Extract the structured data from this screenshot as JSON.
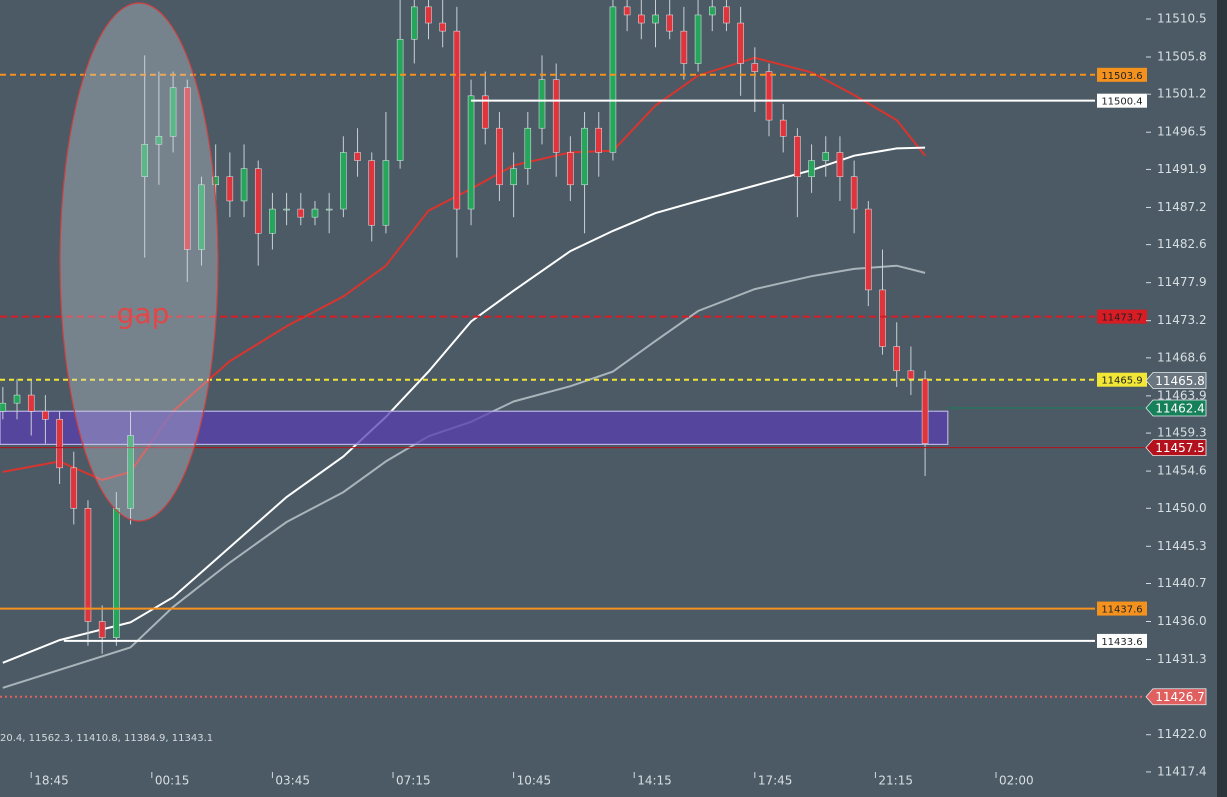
{
  "chart_data": {
    "type": "candlestick",
    "up_color": "#26a65b",
    "down_color": "#e0343d",
    "wick_color": "#c8d0d6",
    "ylim": [
      11414.3,
      11512.85
    ],
    "xlim": [
      -0.2,
      80.5
    ],
    "yticks": [
      11510.5,
      11505.8,
      11501.2,
      11496.5,
      11491.9,
      11487.2,
      11482.6,
      11477.9,
      11473.2,
      11468.6,
      11463.9,
      11459.3,
      11454.6,
      {
        "value": 11450.0,
        "label": "11450.0"
      },
      11445.3,
      11440.7,
      {
        "value": 11436.0,
        "label": "11436.0"
      },
      11431.3,
      {
        "value": 11422.0,
        "label": "11422.0"
      },
      11417.4
    ],
    "xticks": [
      {
        "value": 2,
        "label": "18:45"
      },
      {
        "value": 10.5,
        "label": "00:15"
      },
      {
        "value": 19,
        "label": "03:45"
      },
      {
        "value": 27.5,
        "label": "07:15"
      },
      {
        "value": 36,
        "label": "10:45"
      },
      {
        "value": 44.5,
        "label": "14:15"
      },
      {
        "value": 53,
        "label": "17:45"
      },
      {
        "value": 61.5,
        "label": "21:15"
      },
      {
        "value": 70,
        "label": "02:00"
      }
    ],
    "candles": [
      [
        11462,
        11465,
        11461,
        11463
      ],
      [
        11463,
        11466,
        11461,
        11464
      ],
      [
        11464,
        11466,
        11459,
        11462
      ],
      [
        11462,
        11464,
        11458,
        11461
      ],
      [
        11461,
        11462,
        11453,
        11455
      ],
      [
        11455,
        11457,
        11448,
        11450
      ],
      [
        11450,
        11451,
        11433,
        11436
      ],
      [
        11436,
        11438,
        11432,
        11434
      ],
      [
        11434,
        11452,
        11433,
        11450
      ],
      [
        11450,
        11462,
        11448,
        11459
      ],
      [
        11491,
        11506,
        11481,
        11495
      ],
      [
        11495,
        11504,
        11490,
        11496
      ],
      [
        11496,
        11504,
        11494,
        11502
      ],
      [
        11502,
        11503,
        11478,
        11482
      ],
      [
        11482,
        11491,
        11480,
        11490
      ],
      [
        11490,
        11495,
        11488,
        11491
      ],
      [
        11491,
        11494,
        11486,
        11488
      ],
      [
        11488,
        11495,
        11486,
        11492
      ],
      [
        11492,
        11493,
        11480,
        11484
      ],
      [
        11484,
        11489,
        11482,
        11487
      ],
      [
        11487,
        11489,
        11485,
        11487
      ],
      [
        11487,
        11489,
        11485,
        11486
      ],
      [
        11486,
        11488,
        11485,
        11487
      ],
      [
        11487,
        11489,
        11484,
        11487
      ],
      [
        11487,
        11496,
        11486,
        11494
      ],
      [
        11494,
        11497,
        11491,
        11493
      ],
      [
        11493,
        11494,
        11483,
        11485
      ],
      [
        11485,
        11499,
        11484,
        11493
      ],
      [
        11493,
        11513,
        11492,
        11508
      ],
      [
        11508,
        11513,
        11505,
        11512
      ],
      [
        11512,
        11513,
        11508,
        11510
      ],
      [
        11510,
        11513,
        11507,
        11509
      ],
      [
        11509,
        11512,
        11481,
        11487
      ],
      [
        11487,
        11503,
        11485,
        11501
      ],
      [
        11501,
        11504,
        11495,
        11497
      ],
      [
        11497,
        11499,
        11488,
        11490
      ],
      [
        11490,
        11494,
        11486,
        11492
      ],
      [
        11492,
        11499,
        11490,
        11497
      ],
      [
        11497,
        11506,
        11495,
        11503
      ],
      [
        11503,
        11505,
        11491,
        11494
      ],
      [
        11494,
        11496,
        11488,
        11490
      ],
      [
        11490,
        11499,
        11484,
        11497
      ],
      [
        11497,
        11499,
        11491,
        11494
      ],
      [
        11494,
        11513,
        11493,
        11512
      ],
      [
        11512,
        11513,
        11509,
        11511
      ],
      [
        11511,
        11513,
        11508,
        11510
      ],
      [
        11510,
        11513,
        11507,
        11511
      ],
      [
        11511,
        11513,
        11508,
        11509
      ],
      [
        11509,
        11512,
        11503,
        11505
      ],
      [
        11505,
        11513,
        11504,
        11511
      ],
      [
        11511,
        11513,
        11509,
        11512
      ],
      [
        11512,
        11513,
        11509,
        11510
      ],
      [
        11510,
        11512,
        11501,
        11505
      ],
      [
        11505,
        11507,
        11499,
        11504
      ],
      [
        11504,
        11505,
        11496,
        11498
      ],
      [
        11498,
        11500,
        11494,
        11496
      ],
      [
        11496,
        11497,
        11486,
        11491
      ],
      [
        11491,
        11495,
        11489,
        11493
      ],
      [
        11493,
        11496,
        11491,
        11494
      ],
      [
        11494,
        11496,
        11488,
        11491
      ],
      [
        11491,
        11493,
        11484,
        11487
      ],
      [
        11487,
        11488,
        11475,
        11477
      ],
      [
        11477,
        11482,
        11469,
        11470
      ],
      [
        11470,
        11473,
        11465,
        11467
      ],
      [
        11467,
        11470,
        11464,
        11466
      ],
      [
        11466,
        11467,
        11454,
        11458
      ]
    ],
    "overlays": [
      {
        "color": "#d9342e",
        "x": [
          0,
          4,
          7,
          9,
          12,
          16,
          20,
          24,
          27,
          30,
          33,
          36,
          40,
          43,
          46,
          49,
          53,
          57,
          60,
          63,
          65
        ],
        "values": [
          11454.5,
          11455.8,
          11453.5,
          11454.5,
          11462.0,
          11468.2,
          11472.5,
          11476.2,
          11480.0,
          11486.8,
          11489.5,
          11492.4,
          11494.0,
          11494.2,
          11499.8,
          11503.5,
          11505.7,
          11503.9,
          11501.1,
          11498.0,
          11493.6
        ]
      },
      {
        "color": "#ffffff",
        "x": [
          0,
          4,
          9,
          12,
          16,
          20,
          24,
          27,
          30,
          33,
          36,
          40,
          43,
          46,
          49,
          53,
          57,
          60,
          63,
          65
        ],
        "values": [
          11430.9,
          11433.7,
          11435.9,
          11439.0,
          11445.2,
          11451.4,
          11456.4,
          11461.3,
          11466.9,
          11473.1,
          11476.9,
          11481.8,
          11484.3,
          11486.5,
          11488.0,
          11489.9,
          11491.8,
          11493.6,
          11494.5,
          11494.6
        ]
      },
      {
        "color": "#aab4bb",
        "x": [
          0,
          9,
          12,
          16,
          20,
          24,
          27,
          30,
          33,
          36,
          40,
          43,
          46,
          49,
          53,
          57,
          60,
          63,
          65
        ],
        "values": [
          11427.8,
          11432.8,
          11437.8,
          11443.3,
          11448.3,
          11452.0,
          11455.8,
          11458.9,
          11460.7,
          11463.2,
          11465.1,
          11466.9,
          11470.7,
          11474.4,
          11477.1,
          11478.7,
          11479.6,
          11480.0,
          11479.1
        ]
      }
    ],
    "zone": {
      "low": 11457.9,
      "high": 11462.0,
      "start": -0.2,
      "end": 66.6,
      "color": "#5a3fb0"
    },
    "levels": [
      {
        "value": 11503.6,
        "color": "#f5921e",
        "dash": "6 4",
        "tag": "box",
        "start": -0.2
      },
      {
        "value": 11500.4,
        "color": "#ffffff",
        "dash": "none",
        "tag": "box",
        "start": 33
      },
      {
        "value": 11473.7,
        "color": "#d81c24",
        "dash": "7 4",
        "tag": "box",
        "start": -0.2
      },
      {
        "value": 11465.9,
        "color": "#f2e636",
        "dash": "5 4",
        "tag": "box",
        "start": -0.2
      },
      {
        "value": 11437.6,
        "color": "#f5921e",
        "dash": "none",
        "tag": "box",
        "start": -0.2
      },
      {
        "value": 11433.6,
        "color": "#ffffff",
        "dash": "none",
        "tag": "box",
        "start": 4.3
      },
      {
        "value": 11465.8,
        "color": "#6b7780",
        "dash": "none",
        "tag": "axis",
        "start": 80.5
      },
      {
        "value": 11462.4,
        "color": "#16805a",
        "dash": "none",
        "tag": "axis",
        "start": 66.6
      },
      {
        "value": 11457.5,
        "color": "#b3111b",
        "dash": "none",
        "tag": "axis",
        "start": -0.2
      },
      {
        "value": 11426.7,
        "color": "#e06060",
        "dash": "2 3",
        "tag": "axis",
        "start": -0.2
      }
    ],
    "annotation": "gap",
    "info": "20.4, 11562.3, 11410.8, 11384.9, 11343.1"
  }
}
